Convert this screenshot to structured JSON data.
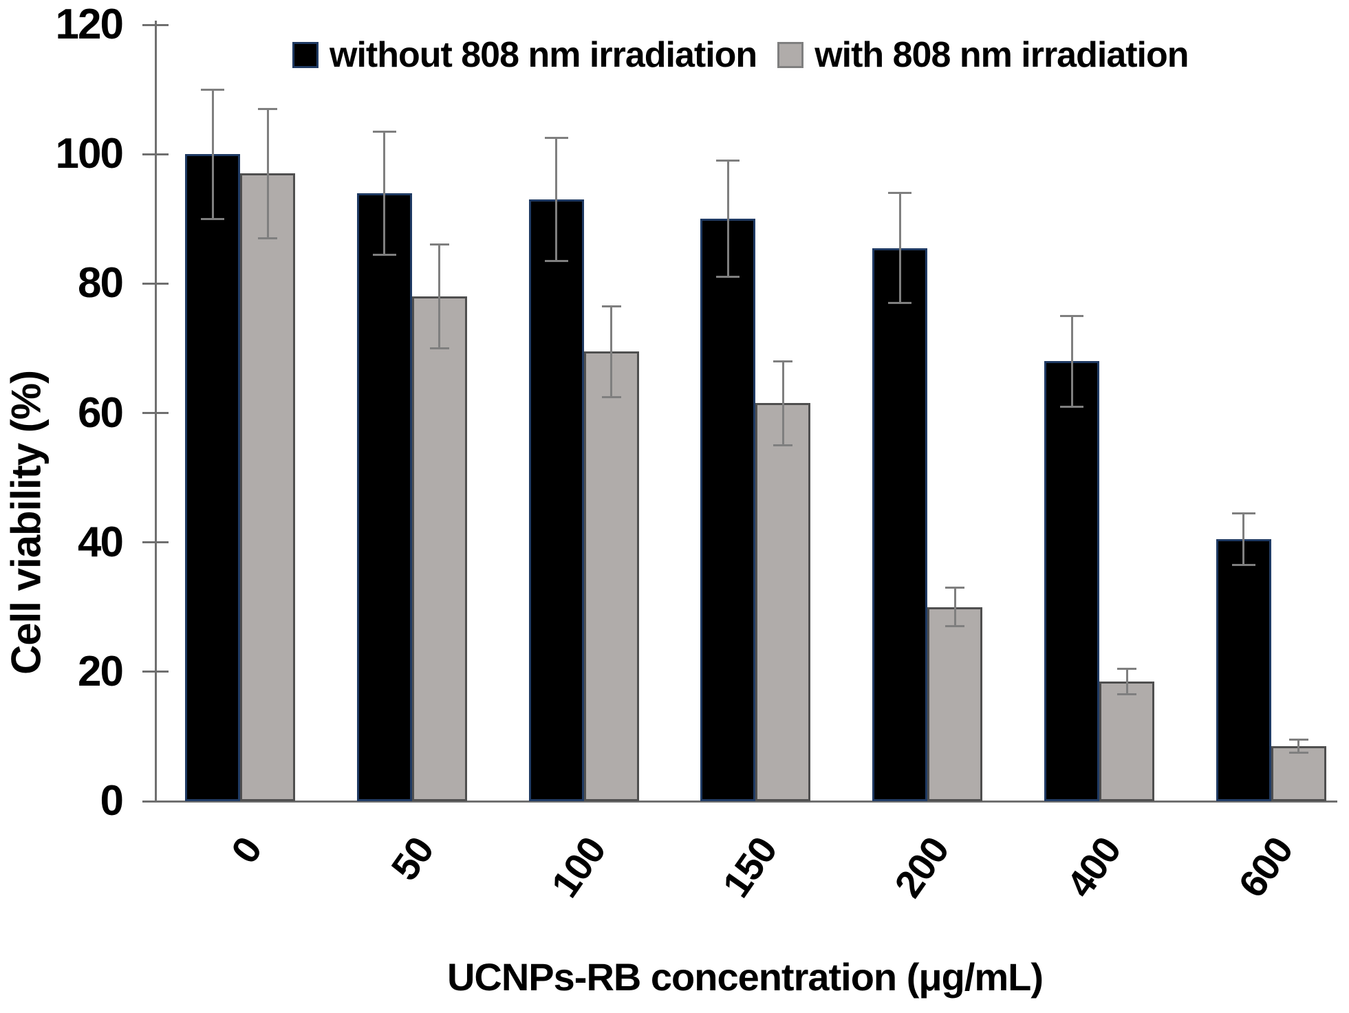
{
  "chart_data": {
    "type": "bar",
    "xlabel": "UCNPs-RB concentration (μg/mL)",
    "ylabel": "Cell viability (%)",
    "ylim": [
      0,
      120
    ],
    "yticks": [
      0,
      20,
      40,
      60,
      80,
      100,
      120
    ],
    "categories": [
      "0",
      "50",
      "100",
      "150",
      "200",
      "400",
      "600"
    ],
    "grid": false,
    "legend_position": "top-center",
    "background_color": "#ffffff",
    "axis_color": "#6f6f6f",
    "error_bar_color": "#7f7f7f",
    "series": [
      {
        "name": "without 808 nm irradiation",
        "color": "#000000",
        "border_color": "#1f3a63",
        "values": [
          100,
          94,
          93,
          90,
          85.5,
          68,
          40.5
        ],
        "errors": [
          10,
          9.5,
          9.5,
          9,
          8.5,
          7,
          4
        ]
      },
      {
        "name": "with 808 nm irradiation",
        "color": "#b0acaa",
        "border_color": "#4f4f4f",
        "values": [
          97,
          78,
          69.5,
          61.5,
          30,
          18.5,
          8.5
        ],
        "errors": [
          10,
          8,
          7,
          6.5,
          3,
          2,
          1
        ]
      }
    ]
  }
}
